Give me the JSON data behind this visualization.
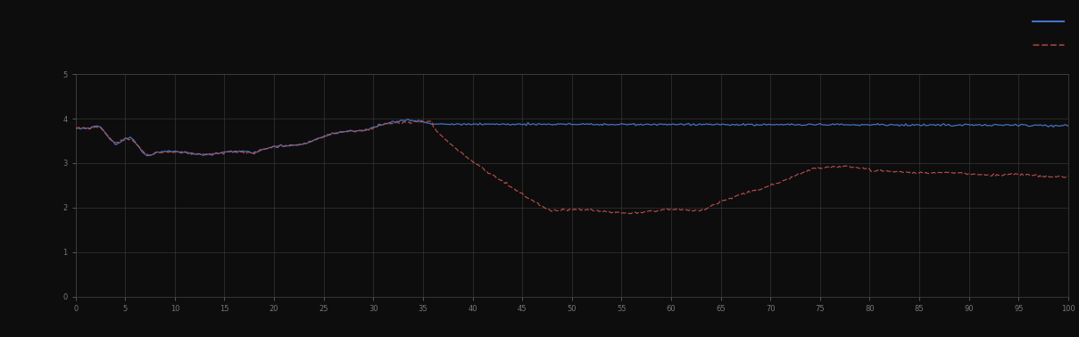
{
  "background_color": "#0d0d0d",
  "plot_bg_color": "#0d0d0d",
  "grid_color": "#444444",
  "blue_line_color": "#4472c4",
  "red_line_color": "#c0504d",
  "xlim": [
    0,
    100
  ],
  "ylim": [
    0,
    5
  ],
  "figsize": [
    12.09,
    3.78
  ],
  "dpi": 100,
  "n_xticks": 21,
  "n_yticks": 6,
  "tick_color": "#777777",
  "tick_fontsize": 6,
  "spine_color": "#444444"
}
